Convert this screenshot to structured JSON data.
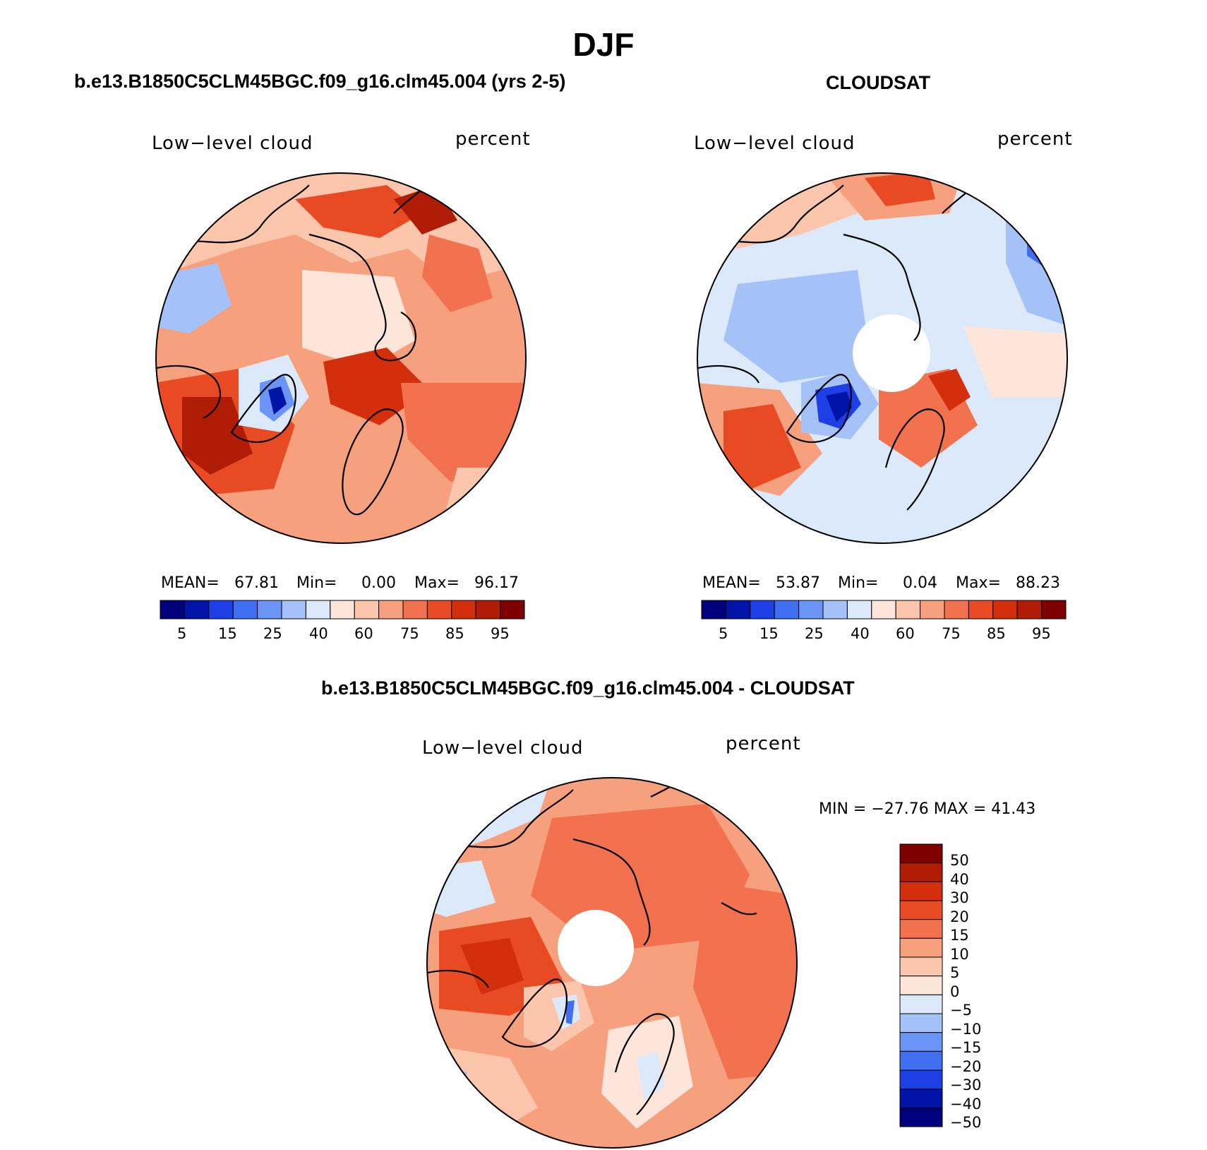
{
  "title": "DJF",
  "panels": [
    {
      "id": "model",
      "title": "b.e13.B1850C5CLM45BGC.f09_g16.clm45.004 (yrs 2-5)",
      "left_label": "Low−level cloud",
      "right_label": "percent",
      "stats": {
        "mean_label": "MEAN=",
        "mean": "67.81",
        "min_label": "Min=",
        "min": "0.00",
        "max_label": "Max=",
        "max": "96.17"
      },
      "colorbar_ticks": [
        "5",
        "15",
        "25",
        "40",
        "60",
        "75",
        "85",
        "95"
      ]
    },
    {
      "id": "obs",
      "title": "CLOUDSAT",
      "left_label": "Low−level cloud",
      "right_label": "percent",
      "stats": {
        "mean_label": "MEAN=",
        "mean": "53.87",
        "min_label": "Min=",
        "min": "0.04",
        "max_label": "Max=",
        "max": "88.23"
      },
      "colorbar_ticks": [
        "5",
        "15",
        "25",
        "40",
        "60",
        "75",
        "85",
        "95"
      ]
    },
    {
      "id": "diff",
      "title": "b.e13.B1850C5CLM45BGC.f09_g16.clm45.004 - CLOUDSAT",
      "left_label": "Low−level cloud",
      "right_label": "percent",
      "minmax": "MIN = −27.76 MAX =   41.43",
      "colorbar_ticks": [
        "50",
        "40",
        "30",
        "20",
        "15",
        "10",
        "5",
        "0",
        "−5",
        "−10",
        "−15",
        "−20",
        "−30",
        "−40",
        "−50"
      ]
    }
  ],
  "colors": {
    "abs_scale": [
      "#00007f",
      "#0015a8",
      "#1e3ee6",
      "#3f6ff0",
      "#6a94f5",
      "#a4c1f8",
      "#dbe9fb",
      "#fde6d9",
      "#fbc6ab",
      "#f7a07e",
      "#f2714e",
      "#e84b24",
      "#d42f0c",
      "#b11c06",
      "#7f0000"
    ],
    "diff_scale": [
      "#7f0000",
      "#b11c06",
      "#d42f0c",
      "#e84b24",
      "#f2714e",
      "#f7a07e",
      "#fbc6ab",
      "#fde6d9",
      "#dbe9fb",
      "#a4c1f8",
      "#6a94f5",
      "#3f6ff0",
      "#1e3ee6",
      "#0015a8",
      "#00007f"
    ],
    "coast": "#000000",
    "background": "#ffffff"
  }
}
